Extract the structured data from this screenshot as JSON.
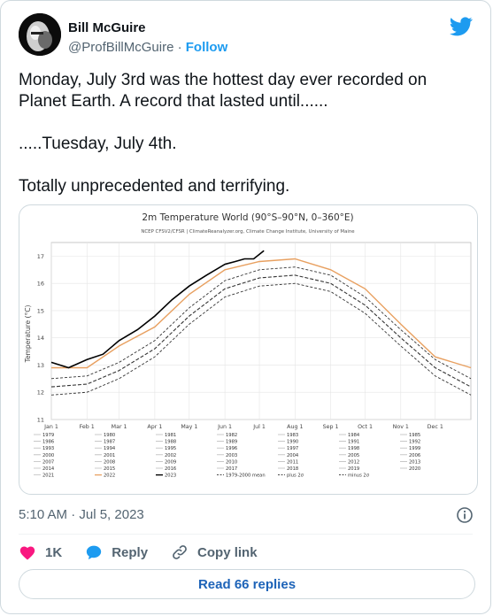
{
  "author": {
    "name": "Bill McGuire",
    "handle": "@ProfBillMcGuire",
    "separator": "·",
    "follow_label": "Follow"
  },
  "tweet": {
    "paragraphs": [
      "Monday, July 3rd was the hottest day ever recorded on Planet Earth. A record that lasted until......",
      ".....Tuesday, July 4th.",
      "Totally unprecedented and terrifying."
    ],
    "timestamp": "5:10 AM · Jul 5, 2023"
  },
  "actions": {
    "like_count": "1K",
    "reply_label": "Reply",
    "copy_label": "Copy link",
    "read_replies_label": "Read 66 replies"
  },
  "icons": [
    "bird-icon",
    "heart-icon",
    "reply-bubble-icon",
    "link-icon",
    "info-icon"
  ],
  "colors": {
    "accent": "#1d9bf0",
    "like": "#f91880",
    "text": "#0f1419",
    "muted": "#536471",
    "year_2022": "#e8a060",
    "year_2023": "#000000"
  },
  "chart_data": {
    "type": "line",
    "title": "2m Temperature World (90°S–90°N, 0–360°E)",
    "subtitle": "NCEP CFSV2/CFSR | ClimateReanalyzer.org, Climate Change Institute, University of Maine",
    "ylabel": "Temperature (°C)",
    "xlabel": "",
    "ylim": [
      11,
      17.5
    ],
    "yticks": [
      11,
      12,
      13,
      14,
      15,
      16,
      17
    ],
    "x_ticklabels": [
      "Jan 1",
      "Feb 1",
      "Mar 1",
      "Apr 1",
      "May 1",
      "Jun 1",
      "Jul 1",
      "Aug 1",
      "Sep 1",
      "Oct 1",
      "Nov 1",
      "Dec 1"
    ],
    "x_tick_days": [
      0,
      31,
      59,
      90,
      120,
      151,
      181,
      212,
      243,
      273,
      304,
      334
    ],
    "grid": true,
    "legend_placement": "bottom",
    "legend_labels": [
      "1979",
      "1980",
      "1981",
      "1982",
      "1983",
      "1984",
      "1985",
      "1986",
      "1987",
      "1988",
      "1989",
      "1990",
      "1991",
      "1992",
      "1993",
      "1994",
      "1995",
      "1996",
      "1997",
      "1998",
      "1999",
      "2000",
      "2001",
      "2002",
      "2003",
      "2004",
      "2005",
      "2006",
      "2007",
      "2008",
      "2009",
      "2010",
      "2011",
      "2012",
      "2013",
      "2014",
      "2015",
      "2016",
      "2017",
      "2018",
      "2019",
      "2020",
      "2021",
      "2022",
      "2023",
      "1979-2000 mean",
      "plus 2σ",
      "minus 2σ"
    ],
    "series": [
      {
        "name": "1979-2000 mean",
        "x": [
          0,
          31,
          59,
          90,
          120,
          151,
          181,
          212,
          243,
          273,
          304,
          334,
          365
        ],
        "y": [
          12.2,
          12.3,
          12.8,
          13.6,
          14.8,
          15.8,
          16.2,
          16.3,
          16.0,
          15.2,
          14.0,
          12.9,
          12.2
        ]
      },
      {
        "name": "plus 2σ",
        "x": [
          0,
          31,
          59,
          90,
          120,
          151,
          181,
          212,
          243,
          273,
          304,
          334,
          365
        ],
        "y": [
          12.5,
          12.6,
          13.1,
          13.9,
          15.1,
          16.1,
          16.5,
          16.6,
          16.3,
          15.5,
          14.3,
          13.2,
          12.5
        ]
      },
      {
        "name": "minus 2σ",
        "x": [
          0,
          31,
          59,
          90,
          120,
          151,
          181,
          212,
          243,
          273,
          304,
          334,
          365
        ],
        "y": [
          11.9,
          12.0,
          12.5,
          13.3,
          14.5,
          15.5,
          15.9,
          16.0,
          15.7,
          14.9,
          13.7,
          12.6,
          11.9
        ]
      },
      {
        "name": "2022",
        "x": [
          0,
          31,
          59,
          90,
          120,
          151,
          181,
          212,
          243,
          273,
          304,
          334,
          365
        ],
        "y": [
          12.9,
          12.9,
          13.7,
          14.4,
          15.6,
          16.5,
          16.8,
          16.9,
          16.5,
          15.8,
          14.5,
          13.3,
          12.9
        ]
      },
      {
        "name": "2023",
        "x": [
          0,
          15,
          31,
          45,
          59,
          75,
          90,
          105,
          120,
          135,
          151,
          160,
          168,
          176,
          185
        ],
        "y": [
          13.1,
          12.9,
          13.2,
          13.4,
          13.9,
          14.3,
          14.8,
          15.4,
          15.9,
          16.3,
          16.7,
          16.8,
          16.9,
          16.9,
          17.2
        ]
      }
    ]
  }
}
